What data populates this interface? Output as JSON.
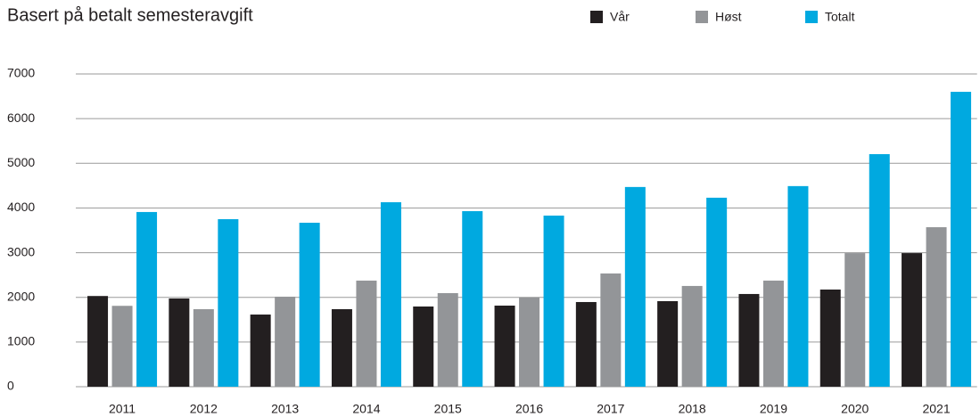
{
  "chart_data": {
    "type": "bar",
    "subtitle": "Basert på betalt semesteravgift",
    "categories": [
      "2011",
      "2012",
      "2013",
      "2014",
      "2015",
      "2016",
      "2017",
      "2018",
      "2019",
      "2020",
      "2021"
    ],
    "series": [
      {
        "name": "Vår",
        "color": "#231f20",
        "values": [
          2030,
          1975,
          1615,
          1735,
          1795,
          1815,
          1895,
          1915,
          2075,
          2175,
          2990
        ]
      },
      {
        "name": "Høst",
        "color": "#939598",
        "values": [
          1810,
          1735,
          2015,
          2375,
          2095,
          1995,
          2535,
          2255,
          2375,
          2990,
          3570
        ]
      },
      {
        "name": "Totalt",
        "color": "#00a9e0",
        "values": [
          3910,
          3750,
          3670,
          4130,
          3930,
          3830,
          4470,
          4230,
          4490,
          5205,
          6600
        ]
      }
    ],
    "ylim": [
      0,
      7000
    ],
    "yticks": [
      0,
      1000,
      2000,
      3000,
      4000,
      5000,
      6000,
      7000
    ],
    "grid": true
  }
}
